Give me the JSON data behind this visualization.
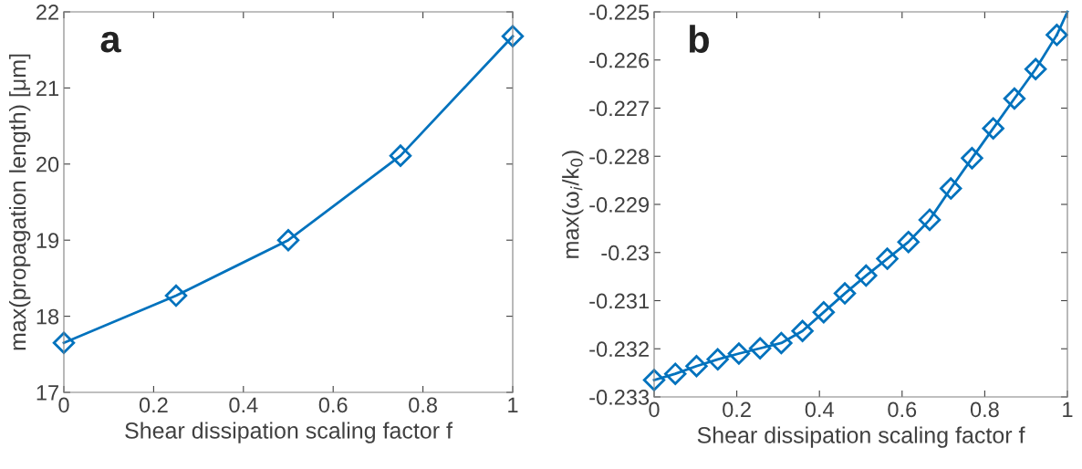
{
  "chart_data": [
    {
      "type": "line",
      "xlabel": "Shear dissipation scaling factor f",
      "ylabel": "max(propagation length) [μm]",
      "annotations": [
        "a"
      ],
      "x": [
        0,
        0.25,
        0.5,
        0.75,
        1
      ],
      "series": [
        {
          "color": "#0072bd",
          "values": [
            17.65,
            18.27,
            19.0,
            20.11,
            21.68
          ],
          "marker": "diamond"
        }
      ],
      "xlim": [
        0,
        1
      ],
      "xticks": [
        0,
        0.2,
        0.4,
        0.6,
        0.8,
        1
      ],
      "ylim": [
        17,
        22
      ],
      "yticks": [
        17,
        18,
        19,
        20,
        21,
        22
      ],
      "grid": false,
      "legend": false
    },
    {
      "type": "line",
      "xlabel": "Shear dissipation scaling factor f",
      "ylabel": "max(ω$_{i}$/k$_{0}$)",
      "annotations": [
        "b"
      ],
      "series": [
        {
          "color": "#0072bd",
          "marker": "diamond",
          "x": [
            0,
            0.0513,
            0.1026,
            0.1538,
            0.2051,
            0.2564,
            0.3077,
            0.359,
            0.4103,
            0.4615,
            0.5128,
            0.5641,
            0.6154,
            0.6667,
            0.7179,
            0.7692,
            0.8205,
            0.8718,
            0.9231,
            0.9744
          ],
          "values": [
            -0.23265,
            -0.23252,
            -0.23236,
            -0.23222,
            -0.2321,
            -0.23199,
            -0.23188,
            -0.23163,
            -0.23124,
            -0.23085,
            -0.23048,
            -0.23013,
            -0.22978,
            -0.22932,
            -0.22867,
            -0.22804,
            -0.22742,
            -0.2268,
            -0.22619,
            -0.22548
          ]
        },
        {
          "color": "#0072bd",
          "marker": "none",
          "x": [
            0.9744,
            1
          ],
          "values": [
            -0.22548,
            -0.225
          ]
        }
      ],
      "xlim": [
        0,
        1
      ],
      "xticks": [
        0,
        0.2,
        0.4,
        0.6,
        0.8,
        1
      ],
      "ylim": [
        -0.233,
        -0.225
      ],
      "yticks": [
        -0.233,
        -0.232,
        -0.231,
        -0.23,
        -0.229,
        -0.228,
        -0.227,
        -0.226,
        -0.225
      ],
      "grid": false,
      "legend": false
    }
  ]
}
